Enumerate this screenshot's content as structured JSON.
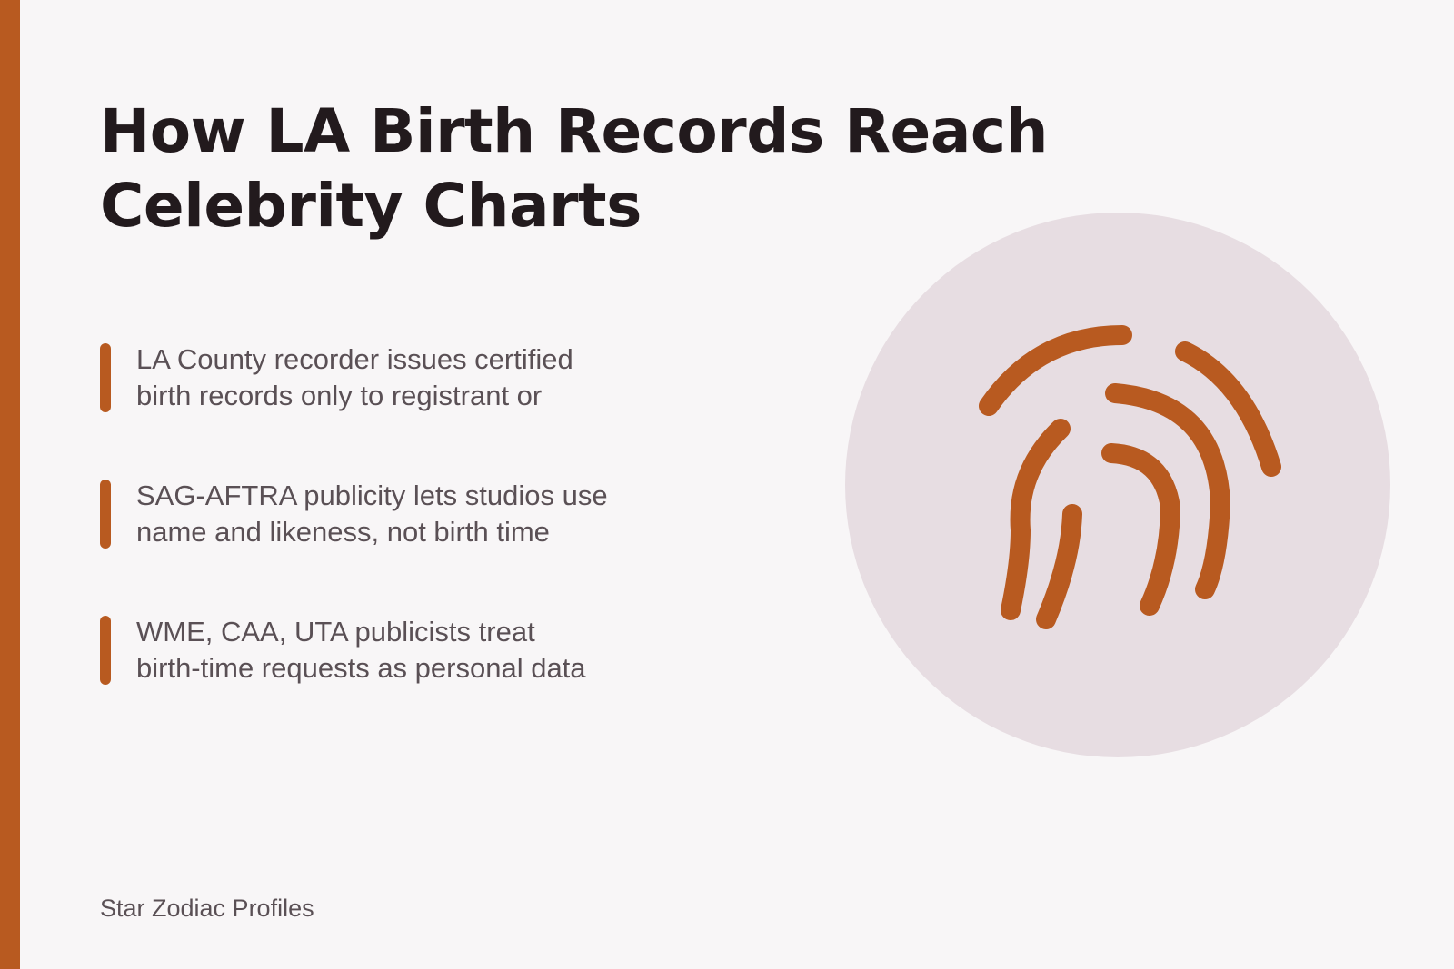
{
  "title": {
    "line1": "How LA Birth Records Reach",
    "line2": "Celebrity Charts"
  },
  "bullets": [
    {
      "line1": "LA County recorder issues certified",
      "line2": "birth records only to registrant or"
    },
    {
      "line1": "SAG-AFTRA publicity lets studios use",
      "line2": "name and likeness, not birth time"
    },
    {
      "line1": "WME, CAA, UTA publicists treat",
      "line2": "birth-time requests as personal data"
    }
  ],
  "footer": {
    "brand": "Star Zodiac Profiles"
  },
  "illustration": {
    "icon": "fingerprint-icon"
  },
  "colors": {
    "accent": "#b85a20",
    "background": "#f8f6f7",
    "circle": "#e7dde2",
    "title": "#221a1d",
    "body_text": "#5a5055"
  }
}
